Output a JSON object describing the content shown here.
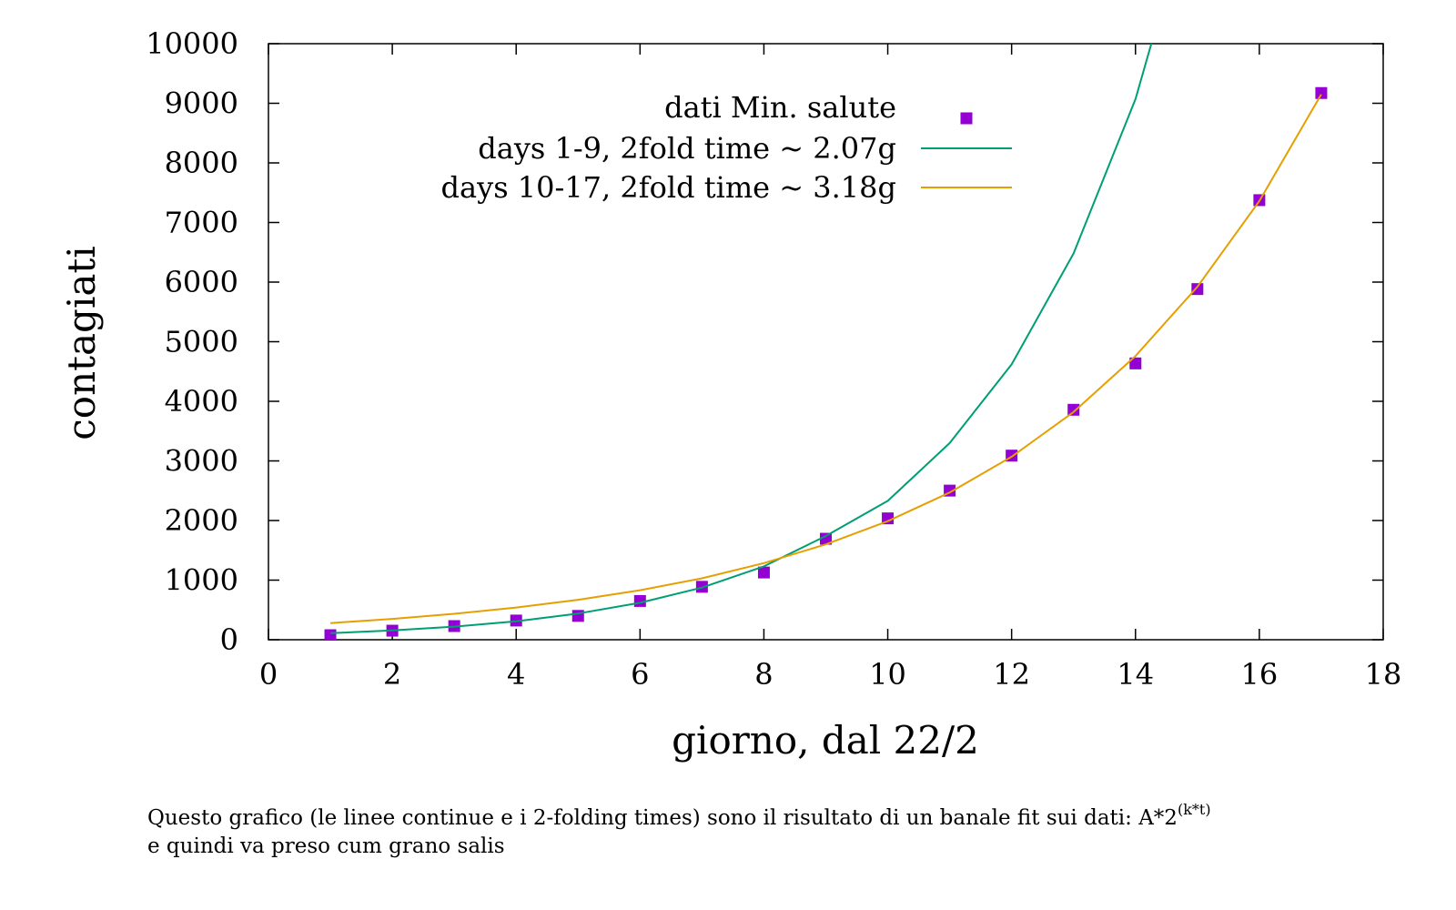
{
  "chart_data": {
    "type": "line",
    "title": "",
    "xlabel": "giorno, dal 22/2",
    "ylabel": "contagiati",
    "xlim": [
      0,
      18
    ],
    "ylim": [
      0,
      10000
    ],
    "xticks": [
      "0",
      "2",
      "4",
      "6",
      "8",
      "10",
      "12",
      "14",
      "16",
      "18"
    ],
    "yticks": [
      "0",
      "1000",
      "2000",
      "3000",
      "4000",
      "5000",
      "6000",
      "7000",
      "8000",
      "9000",
      "10000"
    ],
    "grid": false,
    "legend_position": "top-right",
    "series": [
      {
        "name": "dati Min. salute",
        "kind": "scatter",
        "color": "#9400d3",
        "x": [
          1,
          2,
          3,
          4,
          5,
          6,
          7,
          8,
          9,
          10,
          11,
          12,
          13,
          14,
          15,
          16,
          17
        ],
        "y": [
          76,
          152,
          229,
          322,
          400,
          650,
          888,
          1128,
          1694,
          2036,
          2502,
          3089,
          3858,
          4636,
          5883,
          7375,
          9172
        ]
      },
      {
        "name": "days 1-9,  2fold time ~ 2.07g",
        "kind": "line",
        "color": "#009e73",
        "x": [
          1,
          2,
          3,
          4,
          5,
          6,
          7,
          8,
          9,
          10,
          11,
          12,
          13,
          14,
          15
        ],
        "y": [
          110,
          155,
          220,
          310,
          440,
          620,
          875,
          1230,
          1740,
          2330,
          3300,
          4620,
          6480,
          9070,
          12700
        ]
      },
      {
        "name": "days 10-17, 2fold time ~ 3.18g",
        "kind": "line",
        "color": "#e69f00",
        "x": [
          1,
          2,
          3,
          4,
          5,
          6,
          7,
          8,
          9,
          10,
          11,
          12,
          13,
          14,
          15,
          16,
          17
        ],
        "y": [
          280,
          350,
          435,
          540,
          670,
          830,
          1030,
          1285,
          1600,
          1990,
          2470,
          3070,
          3820,
          4760,
          5920,
          7360,
          9150
        ]
      }
    ]
  },
  "caption": {
    "line1_text": "Questo grafico (le linee continue e i 2-folding times) sono il risultato di un banale fit sui dati: A*2",
    "line1_superscript": "(k*t)",
    "line2_text": "e quindi va preso cum grano salis"
  }
}
